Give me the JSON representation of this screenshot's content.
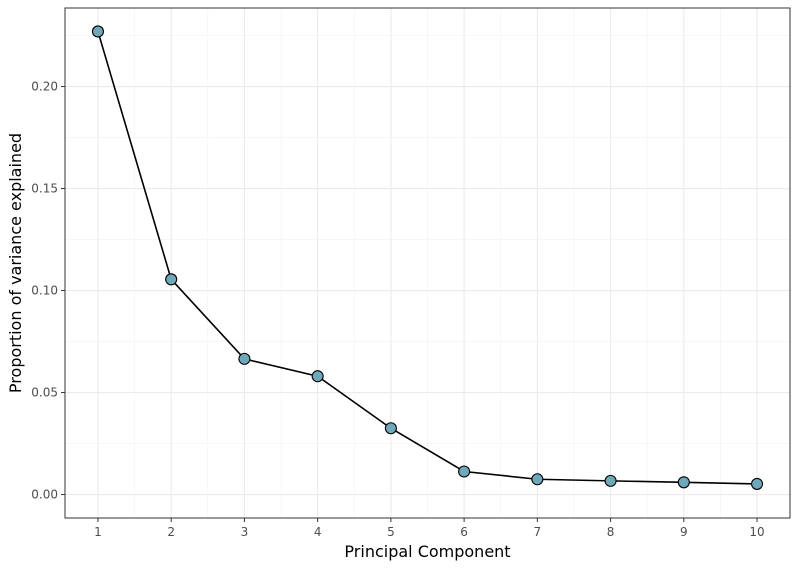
{
  "chart_data": {
    "type": "line",
    "title": "",
    "xlabel": "Principal Component",
    "ylabel": "Proportion of variance explained",
    "x": [
      1,
      2,
      3,
      4,
      5,
      6,
      7,
      8,
      9,
      10
    ],
    "y": [
      0.227,
      0.1055,
      0.0665,
      0.058,
      0.0325,
      0.0113,
      0.0075,
      0.0067,
      0.006,
      0.0052
    ],
    "xlim": [
      0.55,
      10.45
    ],
    "ylim": [
      -0.0115,
      0.2385
    ],
    "x_ticks": [
      1,
      2,
      3,
      4,
      5,
      6,
      7,
      8,
      9,
      10
    ],
    "y_ticks": [
      0.0,
      0.05,
      0.1,
      0.15,
      0.2
    ],
    "y_tick_labels": [
      "0.00",
      "0.05",
      "0.10",
      "0.15",
      "0.20"
    ],
    "grid": true,
    "line_color": "#000000",
    "marker_fill": "#6FA8B8",
    "marker_edge": "#000000"
  }
}
